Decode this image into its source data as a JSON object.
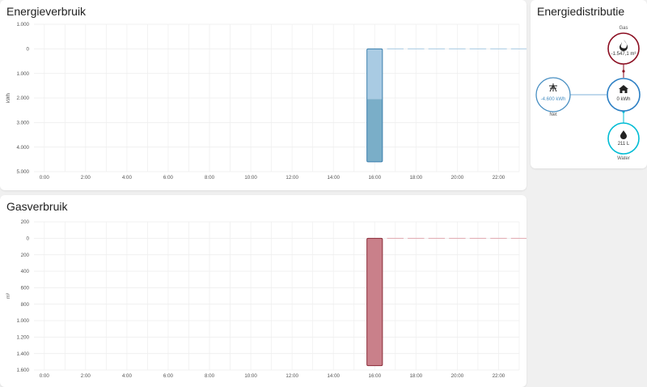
{
  "energy": {
    "title": "Energieverbruik",
    "ylabel": "kWh",
    "colors": {
      "bar_top": "#a9cbe3",
      "bar_bottom": "#7aaec8",
      "bar_border": "#3b7fae",
      "dash": "#a9cbe3"
    }
  },
  "gas": {
    "title": "Gasverbruik",
    "ylabel": "m³",
    "colors": {
      "bar": "#c9808a",
      "bar_border": "#8b2a37",
      "dash": "#e0a7ae"
    }
  },
  "distribution": {
    "title": "Energiedistributie",
    "gas": {
      "label": "Gas",
      "value": "-1.547,1 m³",
      "icon": "flame-icon",
      "color": "#8b0e21"
    },
    "grid": {
      "label": "Net",
      "value": "-4.600 kWh",
      "icon": "transmission-tower-icon",
      "color": "#488fc2"
    },
    "home": {
      "value": "0 kWh",
      "icon": "home-icon",
      "color": "#2c7fc4"
    },
    "water": {
      "label": "Water",
      "value": "211 L",
      "icon": "water-drop-icon",
      "color": "#00bcd4"
    }
  },
  "chart_data": [
    {
      "type": "bar",
      "title": "Energieverbruik",
      "ylabel": "kWh",
      "x_tick_labels": [
        "0:00",
        "2:00",
        "4:00",
        "6:00",
        "8:00",
        "10:00",
        "12:00",
        "14:00",
        "16:00",
        "18:00",
        "20:00",
        "22:00"
      ],
      "y_tick_labels": [
        "1.000",
        "0",
        "1.000",
        "2.000",
        "3.000",
        "4.000",
        "5.000"
      ],
      "y_ticks": [
        -1000,
        0,
        1000,
        2000,
        3000,
        4000,
        5000
      ],
      "ylim": [
        -1000,
        5000
      ],
      "hour_range": [
        0,
        23.5
      ],
      "inverted": true,
      "series": [
        {
          "x": 16,
          "values": [
            2050,
            2550
          ]
        }
      ],
      "empty_from_hour": 17
    },
    {
      "type": "bar",
      "title": "Gasverbruik",
      "ylabel": "m³",
      "x_tick_labels": [
        "0:00",
        "2:00",
        "4:00",
        "6:00",
        "8:00",
        "10:00",
        "12:00",
        "14:00",
        "16:00",
        "18:00",
        "20:00",
        "22:00"
      ],
      "y_tick_labels": [
        "200",
        "0",
        "200",
        "400",
        "600",
        "800",
        "1.000",
        "1.200",
        "1.400",
        "1.600"
      ],
      "y_ticks": [
        -200,
        0,
        200,
        400,
        600,
        800,
        1000,
        1200,
        1400,
        1600
      ],
      "ylim": [
        -200,
        1600
      ],
      "hour_range": [
        0,
        23.5
      ],
      "inverted": true,
      "series": [
        {
          "x": 16,
          "values": [
            1547.1
          ]
        }
      ],
      "empty_from_hour": 17
    }
  ]
}
